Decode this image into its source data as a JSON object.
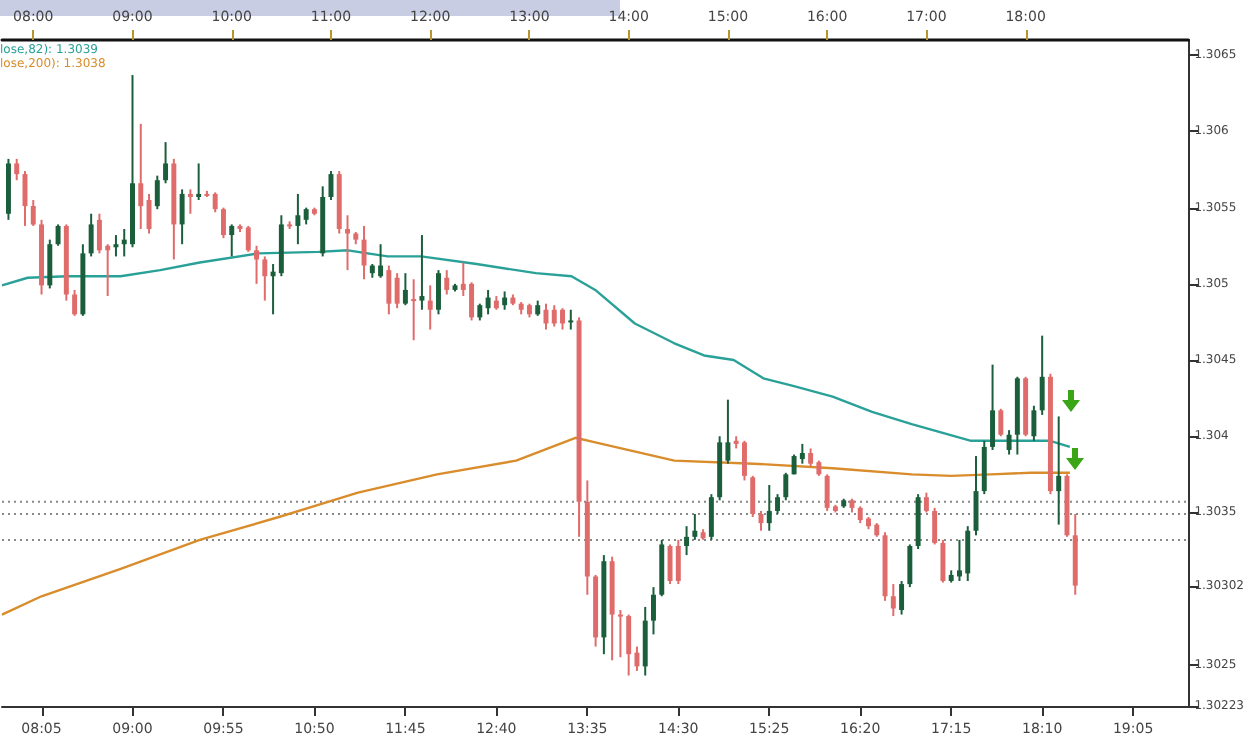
{
  "chart_data": {
    "type": "candlestick",
    "x": [
      7.75,
      7.8333,
      7.9167,
      8,
      8.0833,
      8.1667,
      8.25,
      8.3333,
      8.4167,
      8.5,
      8.5833,
      8.6667,
      8.75,
      8.8333,
      8.9167,
      9,
      9.0833,
      9.1667,
      9.25,
      9.3333,
      9.4167,
      9.5,
      9.5833,
      9.6667,
      9.75,
      9.8333,
      9.9167,
      10,
      10.0833,
      10.1667,
      10.25,
      10.3333,
      10.4167,
      10.5,
      10.5833,
      10.6667,
      10.75,
      10.8333,
      10.9167,
      11,
      11.0833,
      11.1667,
      11.25,
      11.3333,
      11.4167,
      11.5,
      11.5833,
      11.6667,
      11.75,
      11.8333,
      11.9167,
      12,
      12.0833,
      12.1667,
      12.25,
      12.3333,
      12.4167,
      12.5,
      12.5833,
      12.6667,
      12.75,
      12.8333,
      12.9167,
      13,
      13.0833,
      13.1667,
      13.25,
      13.3333,
      13.4167,
      13.5,
      13.5833,
      13.6667,
      13.75,
      13.8333,
      13.9167,
      14,
      14.0833,
      14.1667,
      14.25,
      14.3333,
      14.4167,
      14.5,
      14.5833,
      14.6667,
      14.75,
      14.8333,
      14.9167,
      15,
      15.0833,
      15.1667,
      15.25,
      15.3333,
      15.4167,
      15.5,
      15.5833,
      15.6667,
      15.75,
      15.8333,
      15.9167,
      16,
      16.0833,
      16.1667,
      16.25,
      16.3333,
      16.4167,
      16.5,
      16.5833,
      16.6667,
      16.75,
      16.8333,
      16.9167,
      17,
      17.0833,
      17.1667,
      17.25,
      17.3333,
      17.4167,
      17.5,
      17.5833,
      17.6667,
      17.75,
      17.8333,
      17.9167,
      18,
      18.0833,
      18.1667,
      18.25,
      18.3333,
      18.4167,
      18.5
    ],
    "ohlc": [
      [
        1.30546,
        1.30582,
        1.30542,
        1.30579
      ],
      [
        1.30579,
        1.30582,
        1.30568,
        1.30572
      ],
      [
        1.30572,
        1.30574,
        1.30538,
        1.30551
      ],
      [
        1.30551,
        1.30555,
        1.30538,
        1.30539
      ],
      [
        1.30539,
        1.30542,
        1.30493,
        1.30499
      ],
      [
        1.30499,
        1.30529,
        1.30497,
        1.30526
      ],
      [
        1.30526,
        1.30539,
        1.30525,
        1.30538
      ],
      [
        1.30538,
        1.30539,
        1.30489,
        1.30493
      ],
      [
        1.30493,
        1.30496,
        1.30479,
        1.3048
      ],
      [
        1.3048,
        1.30526,
        1.30479,
        1.3052
      ],
      [
        1.3052,
        1.30546,
        1.30518,
        1.30539
      ],
      [
        1.30542,
        1.30546,
        1.3052,
        1.30522
      ],
      [
        1.30525,
        1.30526,
        1.30492,
        1.30522
      ],
      [
        1.30524,
        1.30532,
        1.30518,
        1.30526
      ],
      [
        1.30526,
        1.30536,
        1.30518,
        1.30529
      ],
      [
        1.30526,
        1.30637,
        1.30524,
        1.30566
      ],
      [
        1.30566,
        1.30605,
        1.30536,
        1.30551
      ],
      [
        1.30555,
        1.30559,
        1.30533,
        1.30536
      ],
      [
        1.30551,
        1.30571,
        1.30549,
        1.30568
      ],
      [
        1.30568,
        1.30593,
        1.30566,
        1.30579
      ],
      [
        1.30579,
        1.30582,
        1.30516,
        1.30539
      ],
      [
        1.30539,
        1.30562,
        1.30526,
        1.30559
      ],
      [
        1.30559,
        1.30562,
        1.30546,
        1.30557
      ],
      [
        1.30557,
        1.30579,
        1.30555,
        1.30559
      ],
      [
        1.30559,
        1.30561,
        1.30557,
        1.30558
      ],
      [
        1.30559,
        1.3056,
        1.30547,
        1.30549
      ],
      [
        1.30549,
        1.3055,
        1.3053,
        1.30532
      ],
      [
        1.30532,
        1.30539,
        1.30518,
        1.30538
      ],
      [
        1.30538,
        1.30539,
        1.30534,
        1.30536
      ],
      [
        1.30537,
        1.30538,
        1.30521,
        1.30522
      ],
      [
        1.30522,
        1.30525,
        1.305,
        1.30516
      ],
      [
        1.30516,
        1.30518,
        1.30489,
        1.30505
      ],
      [
        1.30505,
        1.30513,
        1.3048,
        1.30508
      ],
      [
        1.30507,
        1.30545,
        1.30505,
        1.30539
      ],
      [
        1.30539,
        1.30541,
        1.30536,
        1.30538
      ],
      [
        1.30538,
        1.30559,
        1.30526,
        1.30545
      ],
      [
        1.30542,
        1.3055,
        1.30539,
        1.30549
      ],
      [
        1.30549,
        1.3055,
        1.30545,
        1.30546
      ],
      [
        1.3052,
        1.30564,
        1.30518,
        1.30557
      ],
      [
        1.30557,
        1.30574,
        1.30555,
        1.30572
      ],
      [
        1.30572,
        1.30574,
        1.30533,
        1.30536
      ],
      [
        1.30536,
        1.30545,
        1.30509,
        1.30533
      ],
      [
        1.30533,
        1.30534,
        1.30526,
        1.30529
      ],
      [
        1.30529,
        1.30538,
        1.30503,
        1.30512
      ],
      [
        1.30507,
        1.30513,
        1.30504,
        1.30512
      ],
      [
        1.30505,
        1.30526,
        1.30504,
        1.30512
      ],
      [
        1.30509,
        1.30512,
        1.3048,
        1.30487
      ],
      [
        1.30504,
        1.30507,
        1.30484,
        1.30487
      ],
      [
        1.30487,
        1.30507,
        1.30486,
        1.30496
      ],
      [
        1.3049,
        1.30503,
        1.30463,
        1.30489
      ],
      [
        1.30489,
        1.30532,
        1.30483,
        1.30492
      ],
      [
        1.30489,
        1.30499,
        1.3047,
        1.30483
      ],
      [
        1.30483,
        1.30509,
        1.3048,
        1.30507
      ],
      [
        1.30504,
        1.30509,
        1.30493,
        1.30496
      ],
      [
        1.30496,
        1.305,
        1.30495,
        1.30499
      ],
      [
        1.305,
        1.30514,
        1.30492,
        1.30496
      ],
      [
        1.305,
        1.30501,
        1.30476,
        1.30478
      ],
      [
        1.30478,
        1.30487,
        1.30476,
        1.30486
      ],
      [
        1.30484,
        1.30496,
        1.3048,
        1.30491
      ],
      [
        1.30489,
        1.30492,
        1.30483,
        1.30484
      ],
      [
        1.30486,
        1.30495,
        1.30483,
        1.30491
      ],
      [
        1.30491,
        1.30493,
        1.30486,
        1.30487
      ],
      [
        1.30487,
        1.30488,
        1.3048,
        1.30483
      ],
      [
        1.30486,
        1.30487,
        1.30478,
        1.3048
      ],
      [
        1.3048,
        1.30489,
        1.30479,
        1.30486
      ],
      [
        1.30483,
        1.30487,
        1.3047,
        1.30474
      ],
      [
        1.30483,
        1.30486,
        1.30472,
        1.30474
      ],
      [
        1.30483,
        1.30484,
        1.3047,
        1.30474
      ],
      [
        1.30475,
        1.30483,
        1.3047,
        1.30476
      ],
      [
        1.30476,
        1.30478,
        1.30334,
        1.30357
      ],
      [
        1.30357,
        1.30371,
        1.30296,
        1.30308
      ],
      [
        1.30308,
        1.30309,
        1.30262,
        1.30268
      ],
      [
        1.30268,
        1.30322,
        1.30257,
        1.30318
      ],
      [
        1.30318,
        1.30321,
        1.30253,
        1.30283
      ],
      [
        1.30283,
        1.30286,
        1.30255,
        1.30282
      ],
      [
        1.30282,
        1.30283,
        1.30243,
        1.30257
      ],
      [
        1.30258,
        1.30262,
        1.30246,
        1.30249
      ],
      [
        1.30249,
        1.30288,
        1.30243,
        1.30279
      ],
      [
        1.30279,
        1.30301,
        1.3027,
        1.30296
      ],
      [
        1.30296,
        1.30332,
        1.30295,
        1.30329
      ],
      [
        1.30328,
        1.30329,
        1.30303,
        1.30305
      ],
      [
        1.30328,
        1.30332,
        1.30303,
        1.30305
      ],
      [
        1.30328,
        1.30341,
        1.30322,
        1.30334
      ],
      [
        1.30334,
        1.30349,
        1.30332,
        1.30338
      ],
      [
        1.30337,
        1.30339,
        1.30332,
        1.30333
      ],
      [
        1.30334,
        1.30362,
        1.30332,
        1.3036
      ],
      [
        1.3036,
        1.304,
        1.30358,
        1.30396
      ],
      [
        1.30384,
        1.30424,
        1.30382,
        1.30396
      ],
      [
        1.30397,
        1.304,
        1.30392,
        1.30395
      ],
      [
        1.30396,
        1.30397,
        1.30371,
        1.30374
      ],
      [
        1.30373,
        1.30374,
        1.30347,
        1.30349
      ],
      [
        1.30349,
        1.30351,
        1.30338,
        1.30343
      ],
      [
        1.30343,
        1.30368,
        1.30338,
        1.30351
      ],
      [
        1.30351,
        1.30362,
        1.30349,
        1.3036
      ],
      [
        1.3036,
        1.30376,
        1.30358,
        1.30375
      ],
      [
        1.30375,
        1.30388,
        1.30375,
        1.30387
      ],
      [
        1.30385,
        1.30395,
        1.30382,
        1.30389
      ],
      [
        1.30389,
        1.30392,
        1.3038,
        1.30382
      ],
      [
        1.30383,
        1.30384,
        1.30374,
        1.30375
      ],
      [
        1.30374,
        1.30375,
        1.30351,
        1.30353
      ],
      [
        1.30354,
        1.30355,
        1.3035,
        1.30351
      ],
      [
        1.30354,
        1.30359,
        1.30353,
        1.30358
      ],
      [
        1.30358,
        1.30359,
        1.3035,
        1.30353
      ],
      [
        1.30353,
        1.30354,
        1.30343,
        1.30345
      ],
      [
        1.30346,
        1.30347,
        1.30339,
        1.30341
      ],
      [
        1.30342,
        1.30343,
        1.30334,
        1.30335
      ],
      [
        1.30335,
        1.30337,
        1.30292,
        1.30295
      ],
      [
        1.30295,
        1.30303,
        1.30282,
        1.30287
      ],
      [
        1.30286,
        1.30305,
        1.30283,
        1.30303
      ],
      [
        1.30303,
        1.30329,
        1.30301,
        1.30328
      ],
      [
        1.30328,
        1.30362,
        1.30326,
        1.3036
      ],
      [
        1.3036,
        1.30363,
        1.3035,
        1.30351
      ],
      [
        1.30351,
        1.30353,
        1.30329,
        1.3033
      ],
      [
        1.3033,
        1.30332,
        1.30304,
        1.30305
      ],
      [
        1.30305,
        1.30312,
        1.30304,
        1.30309
      ],
      [
        1.30308,
        1.30332,
        1.30305,
        1.30312
      ],
      [
        1.3031,
        1.30341,
        1.30305,
        1.30338
      ],
      [
        1.30338,
        1.30387,
        1.30335,
        1.30364
      ],
      [
        1.30364,
        1.30397,
        1.30362,
        1.30393
      ],
      [
        1.30393,
        1.30447,
        1.30391,
        1.30417
      ],
      [
        1.30417,
        1.30418,
        1.304,
        1.30401
      ],
      [
        1.30391,
        1.30404,
        1.30388,
        1.30401
      ],
      [
        1.30401,
        1.30439,
        1.30388,
        1.30438
      ],
      [
        1.30438,
        1.30439,
        1.304,
        1.30401
      ],
      [
        1.304,
        1.3042,
        1.30397,
        1.30417
      ],
      [
        1.30417,
        1.30466,
        1.30414,
        1.30439
      ],
      [
        1.30439,
        1.30441,
        1.30362,
        1.30364
      ],
      [
        1.30364,
        1.30413,
        1.30342,
        1.30374
      ],
      [
        1.30374,
        1.30375,
        1.30334,
        1.30335
      ],
      [
        1.30335,
        1.30349,
        1.30296,
        1.30302
      ]
    ],
    "series": [
      {
        "type": "line",
        "color": "#2aa198",
        "x": [
          7.685,
          7.944,
          8.342,
          8.88,
          9.279,
          9.678,
          10.275,
          10.873,
          11.172,
          11.571,
          11.909,
          12.467,
          13.065,
          13.424,
          13.663,
          14.062,
          14.46,
          14.759,
          15.058,
          15.357,
          15.656,
          16.055,
          16.453,
          16.852,
          17.45,
          17.848,
          18.247,
          18.446
        ],
        "values": [
          1.30499,
          1.30504,
          1.30505,
          1.30505,
          1.30509,
          1.30514,
          1.3052,
          1.30521,
          1.30522,
          1.30518,
          1.30518,
          1.30513,
          1.30507,
          1.30505,
          1.30496,
          1.30474,
          1.30461,
          1.30453,
          1.3045,
          1.30438,
          1.30433,
          1.30426,
          1.30416,
          1.30408,
          1.30397,
          1.30397,
          1.30397,
          1.30393
        ]
      },
      {
        "type": "line",
        "color": "#d98c2b",
        "x": [
          7.685,
          8.083,
          8.881,
          9.678,
          10.475,
          11.272,
          12.069,
          12.866,
          13.464,
          13.663,
          14.46,
          15.258,
          16.055,
          16.852,
          17.25,
          17.649,
          18.047,
          18.446
        ],
        "values": [
          1.30283,
          1.30295,
          1.30313,
          1.30332,
          1.30347,
          1.30363,
          1.30375,
          1.30384,
          1.30399,
          1.30396,
          1.30384,
          1.30382,
          1.30379,
          1.30375,
          1.30374,
          1.30375,
          1.30376,
          1.30376
        ]
      }
    ],
    "xlim": [
      7.685,
      19.64
    ],
    "xticks": [
      {
        "value": 8.0833,
        "label": "08:05"
      },
      {
        "value": 9,
        "label": "09:00"
      },
      {
        "value": 9.9167,
        "label": "09:55"
      },
      {
        "value": 10.8333,
        "label": "10:50"
      },
      {
        "value": 11.75,
        "label": "11:45"
      },
      {
        "value": 12.6667,
        "label": "12:40"
      },
      {
        "value": 13.5833,
        "label": "13:35"
      },
      {
        "value": 14.5,
        "label": "14:30"
      },
      {
        "value": 15.4167,
        "label": "15:25"
      },
      {
        "value": 16.3333,
        "label": "16:20"
      },
      {
        "value": 17.25,
        "label": "17:15"
      },
      {
        "value": 18.1667,
        "label": "18:10"
      },
      {
        "value": 19.0833,
        "label": "19:05"
      }
    ],
    "x2lim": [
      7.685,
      19.64
    ],
    "x2ticks": [
      {
        "value": 8,
        "label": "08:00"
      },
      {
        "value": 9,
        "label": "09:00"
      },
      {
        "value": 10,
        "label": "10:00"
      },
      {
        "value": 11,
        "label": "11:00"
      },
      {
        "value": 12,
        "label": "12:00"
      },
      {
        "value": 13,
        "label": "13:00"
      },
      {
        "value": 14,
        "label": "14:00"
      },
      {
        "value": 15,
        "label": "15:00"
      },
      {
        "value": 16,
        "label": "16:00"
      },
      {
        "value": 17,
        "label": "17:00"
      },
      {
        "value": 18,
        "label": "18:00"
      }
    ],
    "ylim": [
      1.30223,
      1.3066
    ],
    "yticks": [
      {
        "value": 1.30223,
        "label": "1.30223"
      },
      1.3025,
      {
        "value": 1.30302,
        "label": "1.30302"
      },
      1.3035,
      1.304,
      1.3045,
      1.305,
      1.3055,
      1.306,
      1.3065
    ],
    "ref_lines": [
      {
        "axis": "y",
        "value": 1.30357,
        "color": "#888888",
        "line_style": "dotted"
      },
      {
        "axis": "y",
        "value": 1.30349,
        "color": "#888888",
        "line_style": "dotted"
      },
      {
        "axis": "y",
        "value": 1.30332,
        "color": "#888888",
        "line_style": "dotted"
      }
    ],
    "annotations": [
      "lose,82): 1.3039",
      "lose,200): 1.3038"
    ],
    "grid": false,
    "marker": "none"
  }
}
